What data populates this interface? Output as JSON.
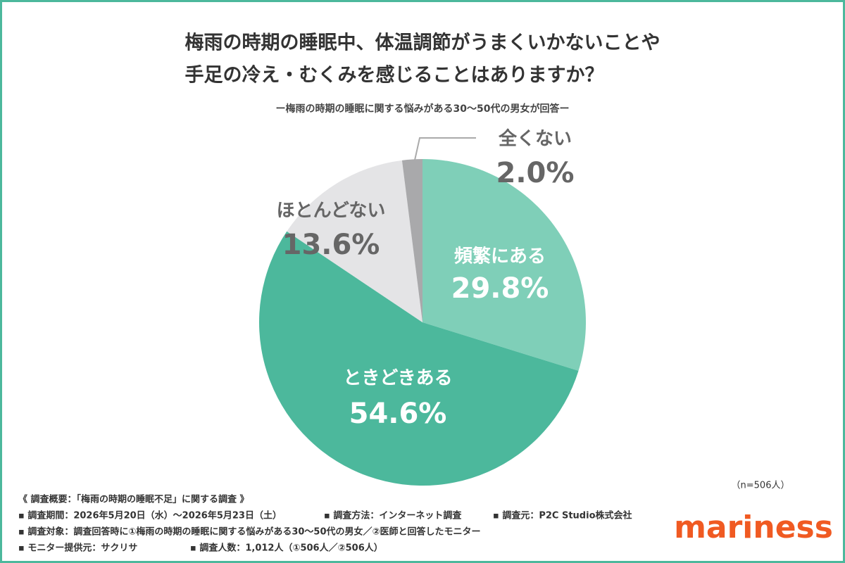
{
  "chart_data": {
    "type": "pie",
    "title": [
      "梅雨の時期の睡眠中、体温調節がうまくいかないことや",
      "手足の冷え・むくみを感じることはありますか？"
    ],
    "subtitle": "ー梅雨の時期の睡眠に関する悩みがある30〜50代の男女が回答ー",
    "categories": [
      "頻繁にある",
      "ときどきある",
      "ほとんどない",
      "全くない"
    ],
    "values": [
      29.8,
      54.6,
      13.6,
      2.0
    ],
    "value_labels": [
      "29.8%",
      "54.6%",
      "13.6%",
      "2.0%"
    ],
    "colors": [
      "#7fcfb8",
      "#4cb89c",
      "#e4e4e6",
      "#a9a9ab"
    ],
    "note": "（n=506人）"
  },
  "footer": {
    "heading": "《 調査概要：「梅雨の時期の睡眠不足」に関する調査 》",
    "lines": [
      [
        "▪ 調査期間：2026年5月20日（水）〜2026年5月23日（土）",
        "▪ 調査方法：インターネット調査",
        "▪ 調査元：P2C Studio株式会社"
      ],
      [
        "▪ 調査対象：調査回答時に①梅雨の時期の睡眠に関する悩みがある30〜50代の男女／②医師と回答したモニター"
      ],
      [
        "▪ モニター提供元：サクリサ",
        "▪ 調査人数：1,012人（①506人／②506人）"
      ]
    ]
  },
  "logo": "mariness"
}
